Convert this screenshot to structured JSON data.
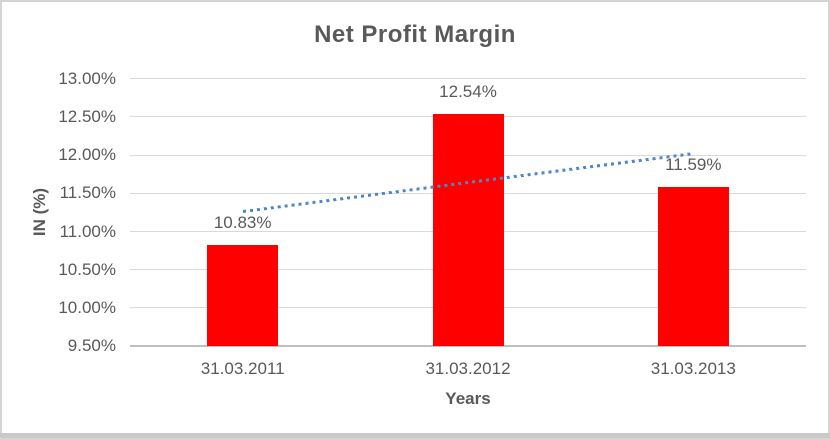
{
  "window": {
    "background": "#ffffff",
    "border_color": "#d5d5d5",
    "bottom_strip_color": "#c9c9c9"
  },
  "chart_data": {
    "type": "bar",
    "title": "Net Profit Margin",
    "categories": [
      "31.03.2011",
      "31.03.2012",
      "31.03.2013"
    ],
    "series": [
      {
        "name": "Net Profit Margin",
        "values": [
          10.83,
          12.54,
          11.59
        ]
      }
    ],
    "data_labels": [
      "10.83%",
      "12.54%",
      "11.59%"
    ],
    "xlabel": "Years",
    "ylabel": "IN (%)",
    "ylim": [
      9.5,
      13.0
    ],
    "ytick_step": 0.5,
    "ytick_labels": [
      "13.00%",
      "12.50%",
      "12.00%",
      "11.50%",
      "11.00%",
      "10.50%",
      "10.00%",
      "9.50%"
    ],
    "grid": true,
    "legend": "none",
    "bar_color": "#ff0000",
    "trendline": {
      "type": "linear",
      "style": "dotted",
      "color": "#4e86c6",
      "endpoint_values": [
        11.27,
        12.03
      ]
    },
    "colors": {
      "text": "#595959",
      "gridline": "#d9d9d9",
      "axis_line": "#bfbfbf"
    }
  }
}
